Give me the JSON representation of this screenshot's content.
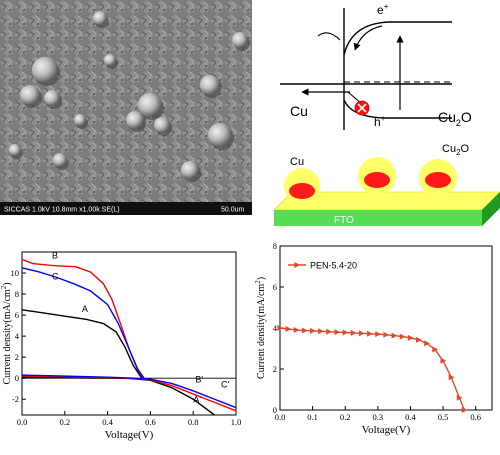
{
  "sem": {
    "info_bar": "SICCAS 1.0kV 10.8mm x1.00k SE(L)",
    "scale_label": "50.0um"
  },
  "band_diagram": {
    "electron_label": "e",
    "electron_sup": "+",
    "hole_label": "h",
    "hole_sup": "+",
    "left_material": "Cu",
    "right_material": "Cu",
    "right_material_sub": "2",
    "right_material_suffix": "O"
  },
  "device": {
    "cu_label": "Cu",
    "cu2o_label": "Cu",
    "cu2o_sub": "2",
    "cu2o_suffix": "O",
    "substrate_label": "FTO",
    "colors": {
      "film": "#ffff66",
      "particle": "#ff2020",
      "substrate": "#33cc33"
    }
  },
  "chart_data": [
    {
      "type": "line",
      "xlabel": "Voltage(V)",
      "ylabel": "Current density(mA/cm",
      "ylabel_sup": "2",
      "ylabel_end": ")",
      "xlim": [
        0.0,
        1.0
      ],
      "ylim": [
        -3.5,
        12
      ],
      "xticks": [
        "0.0",
        "0.2",
        "0.4",
        "0.6",
        "0.8",
        "1.0"
      ],
      "yticks": [
        "-2",
        "0",
        "2",
        "4",
        "6",
        "8",
        "10"
      ],
      "series": [
        {
          "name": "A",
          "color": "#000000",
          "x": [
            0.0,
            0.1,
            0.2,
            0.3,
            0.38,
            0.44,
            0.48,
            0.52,
            0.56
          ],
          "values": [
            6.5,
            6.2,
            5.9,
            5.6,
            5.2,
            4.4,
            3.0,
            1.2,
            0.0
          ]
        },
        {
          "name": "B",
          "color": "#ff0000",
          "x": [
            0.0,
            0.05,
            0.15,
            0.25,
            0.32,
            0.38,
            0.42,
            0.46,
            0.5,
            0.54,
            0.57
          ],
          "values": [
            11.3,
            10.9,
            10.7,
            10.6,
            10.1,
            9.0,
            7.5,
            5.2,
            2.8,
            0.8,
            0.0
          ]
        },
        {
          "name": "C",
          "color": "#0000ff",
          "x": [
            0.0,
            0.08,
            0.16,
            0.24,
            0.32,
            0.4,
            0.45,
            0.5,
            0.54,
            0.57
          ],
          "values": [
            10.5,
            10.1,
            9.6,
            9.0,
            8.3,
            7.0,
            5.2,
            2.8,
            0.9,
            0.0
          ]
        },
        {
          "name": "A'",
          "color": "#000000",
          "x": [
            0.0,
            0.2,
            0.4,
            0.5,
            0.6,
            0.7,
            0.8,
            0.9
          ],
          "values": [
            0.1,
            0.05,
            0.0,
            -0.02,
            -0.2,
            -0.9,
            -2.0,
            -3.5
          ]
        },
        {
          "name": "B'",
          "color": "#ff0000",
          "x": [
            0.0,
            0.2,
            0.4,
            0.5,
            0.6,
            0.7,
            0.8,
            0.9,
            1.0
          ],
          "values": [
            0.2,
            0.15,
            0.05,
            0.0,
            -0.15,
            -0.7,
            -1.5,
            -2.3,
            -3.1
          ]
        },
        {
          "name": "C'",
          "color": "#0000ff",
          "x": [
            0.0,
            0.2,
            0.4,
            0.5,
            0.6,
            0.7,
            0.8,
            0.9,
            1.0
          ],
          "values": [
            0.3,
            0.2,
            0.1,
            0.02,
            -0.1,
            -0.5,
            -1.2,
            -2.0,
            -2.8
          ]
        }
      ]
    },
    {
      "type": "line",
      "xlabel": "Voltage(V)",
      "ylabel": "Current density(mA/cm",
      "ylabel_sup": "2",
      "ylabel_end": ")",
      "xlim": [
        0.0,
        0.65
      ],
      "ylim": [
        0,
        8
      ],
      "xticks": [
        "0.0",
        "0.1",
        "0.2",
        "0.3",
        "0.4",
        "0.5",
        "0.6"
      ],
      "yticks": [
        "0",
        "2",
        "4",
        "6",
        "8"
      ],
      "legend_position": "top-left",
      "series": [
        {
          "name": "PEN-5.4-20",
          "color": "#e04a2a",
          "x": [
            0.0,
            0.025,
            0.05,
            0.075,
            0.1,
            0.125,
            0.15,
            0.175,
            0.2,
            0.225,
            0.25,
            0.275,
            0.3,
            0.325,
            0.35,
            0.375,
            0.4,
            0.425,
            0.45,
            0.475,
            0.5,
            0.525,
            0.55,
            0.565
          ],
          "values": [
            4.0,
            3.95,
            3.9,
            3.88,
            3.86,
            3.84,
            3.82,
            3.8,
            3.78,
            3.76,
            3.74,
            3.72,
            3.7,
            3.67,
            3.63,
            3.58,
            3.52,
            3.42,
            3.25,
            2.95,
            2.4,
            1.6,
            0.6,
            0.0
          ]
        }
      ]
    }
  ]
}
